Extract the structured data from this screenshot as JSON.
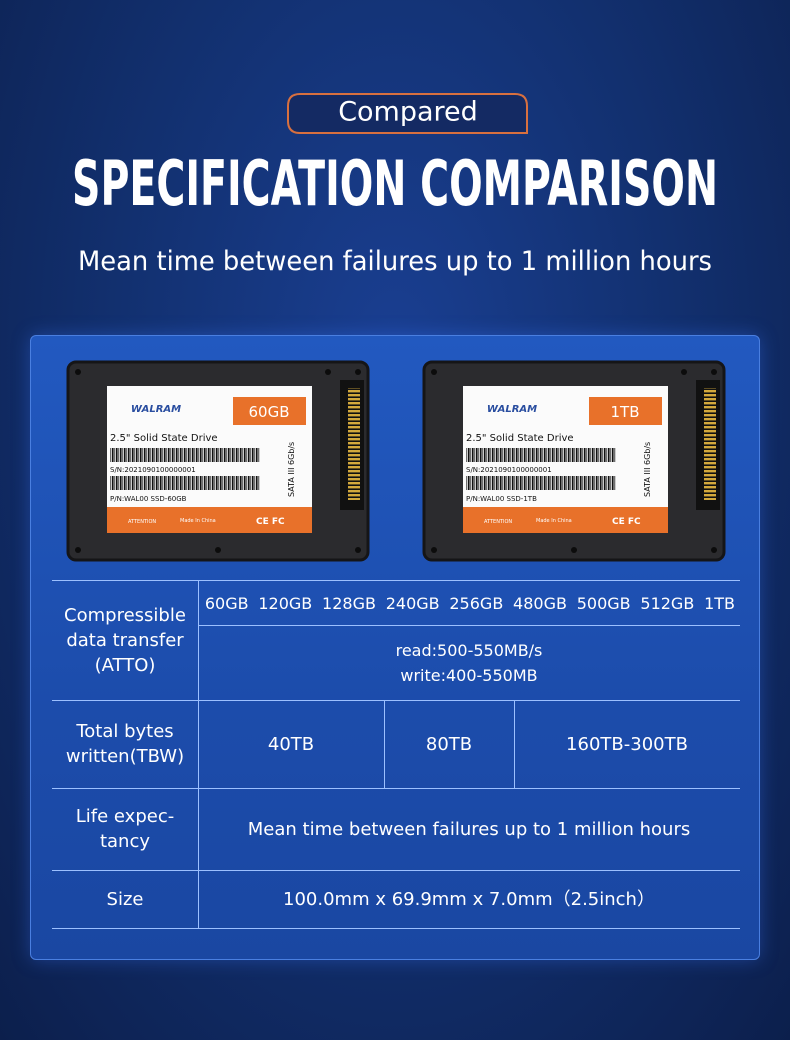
{
  "header": {
    "tag": "Compared",
    "title": "SPECIFICATION COMPARISON",
    "subtitle": "Mean time between failures up to 1 million hours"
  },
  "ssds": [
    {
      "brand": "WALRAM",
      "capacity": "60GB",
      "model": "2.5\" Solid State Drive",
      "serial": "S/N:2021090100000001",
      "part": "P/N:WAL00 SSD-60GB",
      "interface": "SATA III 6Gb/s",
      "warning": "ATTENTION",
      "origin": "Made In China",
      "marks": "CE FC"
    },
    {
      "brand": "WALRAM",
      "capacity": "1TB",
      "model": "2.5\" Solid State Drive",
      "serial": "S/N:2021090100000001",
      "part": "P/N:WAL00 SSD-1TB",
      "interface": "SATA III 6Gb/s",
      "warning": "ATTENTION",
      "origin": "Made In China",
      "marks": "CE FC"
    }
  ],
  "table": {
    "rows": [
      {
        "label": [
          "Compressible",
          "data transfer",
          "(ATTO)"
        ],
        "capacities": [
          "60GB",
          "120GB",
          "128GB",
          "240GB",
          "256GB",
          "480GB",
          "500GB",
          "512GB",
          "1TB"
        ],
        "speeds": [
          "read:500-550MB/s",
          "write:400-550MB"
        ]
      },
      {
        "label": [
          "Total bytes",
          "written(TBW)"
        ],
        "cells": [
          "40TB",
          "80TB",
          "160TB-300TB"
        ]
      },
      {
        "label": [
          "Life expec-",
          "tancy"
        ],
        "cells": [
          "Mean time between failures up to 1 million hours"
        ]
      },
      {
        "label": [
          "Size"
        ],
        "cells": [
          "100.0mm x 69.9mm x 7.0mm（2.5inch）"
        ]
      }
    ]
  }
}
